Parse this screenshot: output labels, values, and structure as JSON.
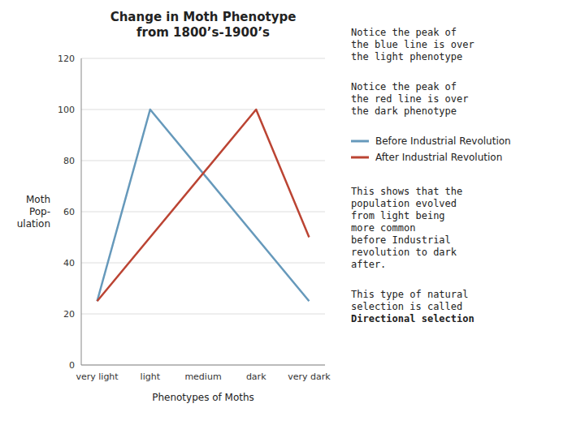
{
  "chart_data": {
    "type": "line",
    "title": "Change in Moth Phenotype\nfrom 1800’s-1900’s",
    "x_label": "Phenotypes of Moths",
    "y_label": "Moth\nPop-\nulation",
    "categories": [
      "very light",
      "light",
      "medium",
      "dark",
      "very dark"
    ],
    "series": [
      {
        "name": "Before Industrial Revolution",
        "color": "#6699BB",
        "x": [
          "very light",
          "light",
          "very dark"
        ],
        "values": [
          25,
          100,
          25
        ]
      },
      {
        "name": "After Industrial Revolution",
        "color": "#BB4433",
        "x": [
          "very light",
          "dark",
          "very dark"
        ],
        "values": [
          25,
          100,
          50
        ]
      }
    ],
    "ylim": [
      0,
      120
    ],
    "yticks": [
      0,
      20,
      40,
      60,
      80,
      100,
      120
    ],
    "grid": true,
    "annotations": [
      "Notice the peak of\nthe blue line is over\nthe light phenotype",
      "Notice the peak of\nthe red line is over\nthe dark phenotype",
      "This shows that the\npopulation evolved\nfrom light being\nmore common\nbefore Industrial\nrevolution to dark\nafter.",
      "This type of natural\nselection is called\nDirectional selection"
    ]
  }
}
